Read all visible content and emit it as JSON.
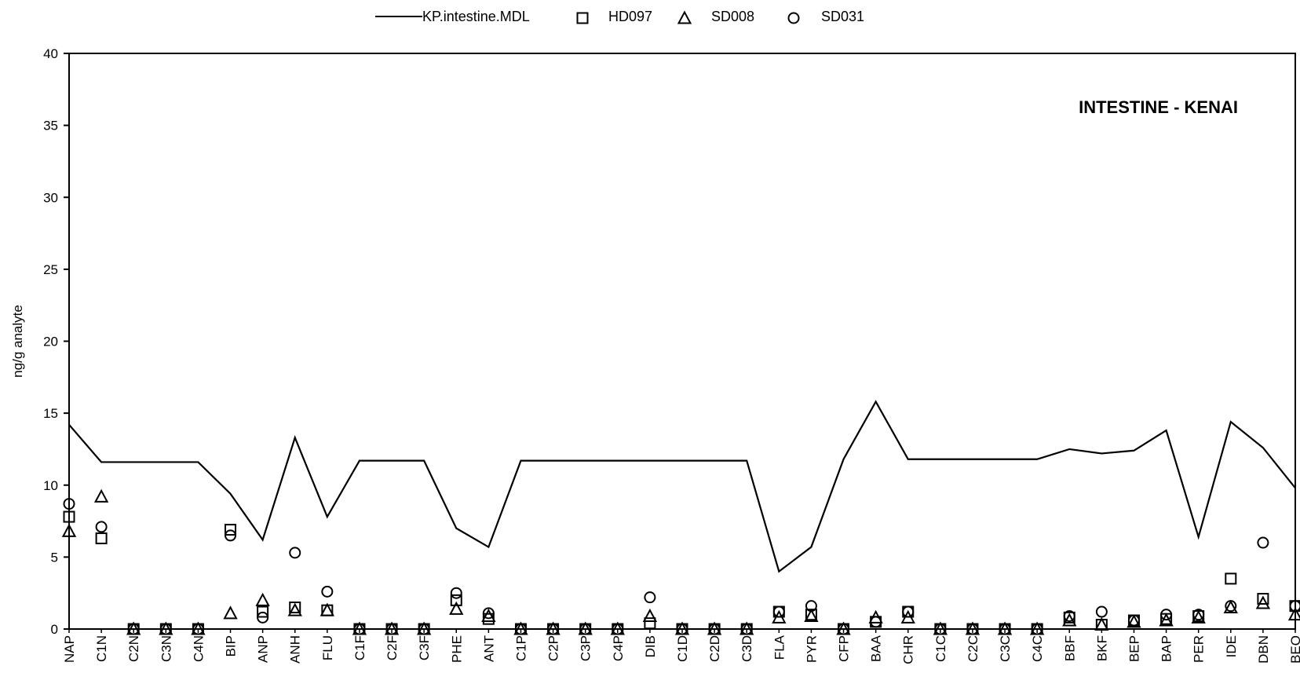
{
  "chart_data": {
    "type": "scatter",
    "title": "INTESTINE - KENAI",
    "xlabel": "",
    "ylabel": "ng/g analyte",
    "ylim": [
      0,
      40
    ],
    "yticks": [
      0,
      5,
      10,
      15,
      20,
      25,
      30,
      35,
      40
    ],
    "grid": false,
    "legend_position": "top",
    "categories": [
      "NAP",
      "C1N",
      "C2N",
      "C3N",
      "C4N",
      "BIP",
      "ANP",
      "ANH",
      "FLU",
      "C1F",
      "C2F",
      "C3F",
      "PHE",
      "ANT",
      "C1P",
      "C2P",
      "C3P",
      "C4P",
      "DIB",
      "C1D",
      "C2D",
      "C3D",
      "FLA",
      "PYR",
      "CFP",
      "BAA",
      "CHR",
      "C1C",
      "C2C",
      "C3C",
      "C4C",
      "BBF",
      "BKF",
      "BEP",
      "BAP",
      "PER",
      "IDE",
      "DBN",
      "BEQ"
    ],
    "series": [
      {
        "name": "KP.intestine.MDL",
        "kind": "line",
        "marker": "none",
        "values": [
          14.2,
          11.6,
          11.6,
          11.6,
          11.6,
          9.4,
          6.2,
          13.3,
          7.8,
          11.7,
          11.7,
          11.7,
          7.0,
          5.7,
          11.7,
          11.7,
          11.7,
          11.7,
          11.7,
          11.7,
          11.7,
          11.7,
          4.0,
          5.7,
          11.8,
          15.8,
          11.8,
          11.8,
          11.8,
          11.8,
          11.8,
          12.5,
          12.2,
          12.4,
          13.8,
          6.4,
          14.4,
          12.6,
          9.8
        ]
      },
      {
        "name": "HD097",
        "kind": "scatter",
        "marker": "square",
        "values": [
          7.8,
          6.3,
          0,
          0,
          0,
          6.9,
          1.2,
          1.5,
          1.3,
          0,
          0,
          0,
          2.0,
          0.7,
          0,
          0,
          0,
          0,
          0.4,
          0,
          0,
          0,
          1.2,
          1.0,
          0,
          0.5,
          1.2,
          0,
          0,
          0,
          0,
          0.8,
          0.3,
          0.6,
          0.7,
          0.9,
          3.5,
          2.1,
          1.6
        ]
      },
      {
        "name": "SD008",
        "kind": "scatter",
        "marker": "triangle",
        "values": [
          6.8,
          9.2,
          0,
          0,
          0,
          1.1,
          2.0,
          1.3,
          1.3,
          0,
          0,
          0,
          1.4,
          0.9,
          0,
          0,
          0,
          0,
          0.9,
          0,
          0,
          0,
          0.8,
          0.9,
          0,
          0.8,
          0.8,
          0,
          0,
          0,
          0,
          0.6,
          0.3,
          0.5,
          0.6,
          0.8,
          1.5,
          1.8,
          1.0
        ]
      },
      {
        "name": "SD031",
        "kind": "scatter",
        "marker": "circle",
        "values": [
          8.7,
          7.1,
          0,
          0,
          0,
          6.5,
          0.8,
          5.3,
          2.6,
          0,
          0,
          0,
          2.5,
          1.1,
          0,
          0,
          0,
          0,
          2.2,
          0,
          0,
          0,
          1.2,
          1.6,
          0,
          0.5,
          1.2,
          0,
          0,
          0,
          0,
          0.9,
          1.2,
          0.6,
          1.0,
          1.0,
          1.6,
          6.0,
          1.6
        ]
      }
    ]
  }
}
